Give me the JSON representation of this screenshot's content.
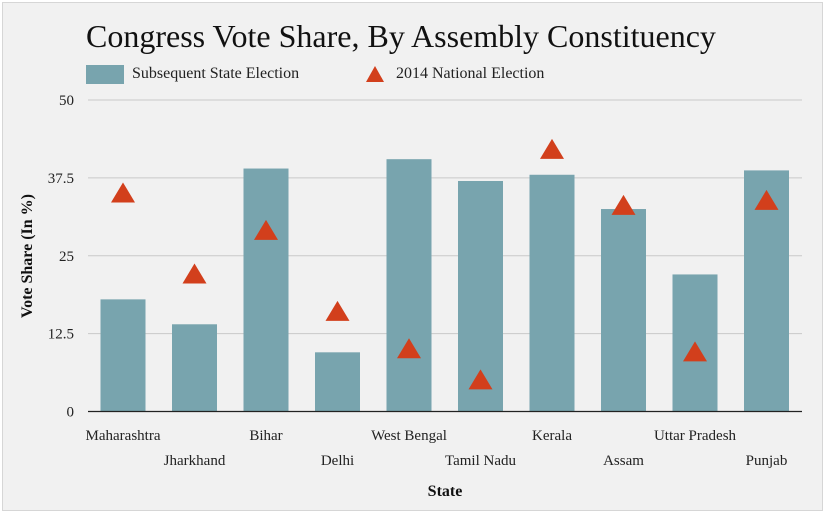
{
  "colors": {
    "bar": "#78a4ae",
    "marker": "#d23f1c",
    "grid": "#c9c9c9",
    "background": "#f1f1f1"
  },
  "chart_data": {
    "type": "bar",
    "title": "Congress Vote Share, By Assembly Constituency",
    "xlabel": "State",
    "ylabel": "Vote Share (In %)",
    "ylim": [
      0,
      50
    ],
    "yticks": [
      "0",
      "12.5",
      "25",
      "37.5",
      "50"
    ],
    "yticks_values": [
      0,
      12.5,
      25,
      37.5,
      50
    ],
    "grid": true,
    "legend_position": "top-left",
    "categories": [
      "Maharashtra",
      "Jharkhand",
      "Bihar",
      "Delhi",
      "West Bengal",
      "Tamil Nadu",
      "Kerala",
      "Assam",
      "Uttar Pradesh",
      "Punjab"
    ],
    "series": [
      {
        "name": "Subsequent State Election",
        "type": "bar",
        "values": [
          18,
          14,
          39,
          9.5,
          40.5,
          37,
          38,
          32.5,
          22,
          38.7
        ]
      },
      {
        "name": "2014 National Election",
        "type": "marker-triangle",
        "values": [
          35,
          22,
          29,
          16,
          10,
          5,
          42,
          33,
          9.5,
          33.8
        ]
      }
    ]
  }
}
